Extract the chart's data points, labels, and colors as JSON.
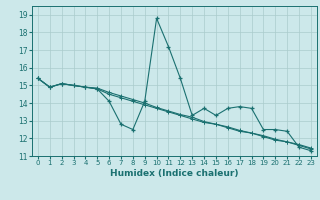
{
  "title": "",
  "xlabel": "Humidex (Indice chaleur)",
  "ylabel": "",
  "background_color": "#cce8ea",
  "grid_color": "#aacccc",
  "line_color": "#1a7070",
  "xlim": [
    -0.5,
    23.5
  ],
  "ylim": [
    11,
    19.5
  ],
  "yticks": [
    11,
    12,
    13,
    14,
    15,
    16,
    17,
    18,
    19
  ],
  "xticks": [
    0,
    1,
    2,
    3,
    4,
    5,
    6,
    7,
    8,
    9,
    10,
    11,
    12,
    13,
    14,
    15,
    16,
    17,
    18,
    19,
    20,
    21,
    22,
    23
  ],
  "series1_x": [
    0,
    1,
    2,
    3,
    4,
    5,
    6,
    7,
    8,
    9,
    10,
    11,
    12,
    13,
    14,
    15,
    16,
    17,
    18,
    19,
    20,
    21,
    22,
    23
  ],
  "series1_y": [
    15.4,
    14.9,
    15.1,
    15.0,
    14.9,
    14.8,
    14.1,
    12.8,
    12.5,
    14.1,
    18.8,
    17.2,
    15.4,
    13.3,
    13.7,
    13.3,
    13.7,
    13.8,
    13.7,
    12.5,
    12.5,
    12.4,
    11.5,
    11.3
  ],
  "series2_x": [
    0,
    1,
    2,
    3,
    4,
    5,
    6,
    7,
    8,
    9,
    10,
    11,
    12,
    13,
    14,
    15,
    16,
    17,
    18,
    19,
    20,
    21,
    22,
    23
  ],
  "series2_y": [
    15.4,
    14.9,
    15.1,
    15.0,
    14.9,
    14.8,
    14.5,
    14.3,
    14.1,
    13.9,
    13.7,
    13.5,
    13.3,
    13.1,
    12.9,
    12.8,
    12.6,
    12.4,
    12.3,
    12.1,
    11.9,
    11.8,
    11.6,
    11.4
  ],
  "series3_x": [
    0,
    1,
    2,
    3,
    4,
    5,
    6,
    7,
    8,
    9,
    10,
    11,
    12,
    13,
    14,
    15,
    16,
    17,
    18,
    19,
    20,
    21,
    22,
    23
  ],
  "series3_y": [
    15.4,
    14.9,
    15.1,
    15.0,
    14.9,
    14.85,
    14.6,
    14.4,
    14.2,
    14.0,
    13.75,
    13.55,
    13.35,
    13.2,
    12.95,
    12.8,
    12.65,
    12.45,
    12.3,
    12.15,
    11.95,
    11.8,
    11.65,
    11.45
  ],
  "tick_fontsize": 5.5,
  "xlabel_fontsize": 6.5
}
